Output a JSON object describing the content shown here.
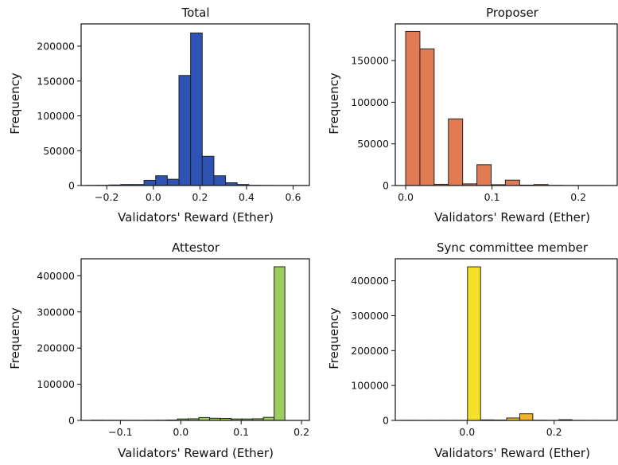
{
  "chart_data": [
    {
      "type": "bar",
      "title": "Total",
      "xlabel": "Validators' Reward (Ether)",
      "ylabel": "Frequency",
      "color": "#2f52b5",
      "xlim": [
        -0.31,
        0.67
      ],
      "ylim": [
        0,
        232000
      ],
      "xticks": [
        -0.2,
        0.0,
        0.2,
        0.4,
        0.6
      ],
      "xtick_labels": [
        "−0.2",
        "0.0",
        "0.2",
        "0.4",
        "0.6"
      ],
      "yticks": [
        0,
        50000,
        100000,
        150000,
        200000
      ],
      "ytick_labels": [
        "0",
        "50000",
        "100000",
        "150000",
        "200000"
      ],
      "bin_edges": [
        -0.29,
        -0.24,
        -0.19,
        -0.14,
        -0.09,
        -0.04,
        0.01,
        0.06,
        0.11,
        0.16,
        0.21,
        0.26,
        0.31,
        0.36,
        0.41,
        0.46,
        0.51,
        0.56,
        0.61,
        0.66
      ],
      "values": [
        200,
        300,
        800,
        1500,
        1500,
        7500,
        14000,
        9000,
        158000,
        219000,
        42000,
        14000,
        4000,
        1500,
        300,
        200,
        100,
        100,
        100
      ]
    },
    {
      "type": "bar",
      "title": "Proposer",
      "xlabel": "Validators' Reward (Ether)",
      "ylabel": "Frequency",
      "color": "#e07b54",
      "xlim": [
        -0.012,
        0.245
      ],
      "ylim": [
        0,
        194000
      ],
      "xticks": [
        0.0,
        0.1,
        0.2
      ],
      "xtick_labels": [
        "0.0",
        "0.1",
        "0.2"
      ],
      "yticks": [
        0,
        50000,
        100000,
        150000
      ],
      "ytick_labels": [
        "0",
        "50000",
        "100000",
        "150000"
      ],
      "bin_edges": [
        0.0,
        0.0165,
        0.033,
        0.0495,
        0.066,
        0.0825,
        0.099,
        0.1155,
        0.132,
        0.1485,
        0.165,
        0.1815,
        0.198,
        0.2145,
        0.231,
        0.2475
      ],
      "values": [
        185000,
        164000,
        1500,
        80000,
        2000,
        25000,
        1000,
        6500,
        500,
        1200,
        200,
        100,
        100,
        100,
        50
      ]
    },
    {
      "type": "bar",
      "title": "Attestor",
      "xlabel": "Validators' Reward (Ether)",
      "ylabel": "Frequency",
      "color": "#9dcc5f",
      "xlim": [
        -0.165,
        0.213
      ],
      "ylim": [
        0,
        447000
      ],
      "xticks": [
        -0.1,
        0.0,
        0.1,
        0.2
      ],
      "xtick_labels": [
        "−0.1",
        "0.0",
        "0.1",
        "0.2"
      ],
      "yticks": [
        0,
        100000,
        200000,
        300000,
        400000
      ],
      "ytick_labels": [
        "0",
        "100000",
        "200000",
        "300000",
        "400000"
      ],
      "bin_edges": [
        -0.148,
        -0.1302,
        -0.1124,
        -0.0946,
        -0.0768,
        -0.059,
        -0.0412,
        -0.0234,
        -0.0056,
        0.0122,
        0.03,
        0.0478,
        0.0656,
        0.0834,
        0.1012,
        0.119,
        0.1368,
        0.1546,
        0.1724,
        0.1902
      ],
      "values": [
        500,
        300,
        300,
        200,
        200,
        300,
        500,
        1000,
        4000,
        4500,
        8000,
        6000,
        5500,
        4000,
        4000,
        4500,
        8500,
        425000,
        0
      ]
    },
    {
      "type": "bar",
      "title": "Sync committee member",
      "xlabel": "Validators' Reward (Ether)",
      "ylabel": "Frequency",
      "color": "#f5e12a",
      "xlim": [
        -0.165,
        0.345
      ],
      "ylim": [
        0,
        463000
      ],
      "xticks": [
        0.0,
        0.2
      ],
      "xtick_labels": [
        "0.0",
        "0.2"
      ],
      "yticks": [
        0,
        100000,
        200000,
        300000,
        400000
      ],
      "ytick_labels": [
        "0",
        "100000",
        "200000",
        "300000",
        "400000"
      ],
      "bin_edges": [
        -0.149,
        -0.119,
        -0.089,
        -0.059,
        -0.029,
        0.001,
        0.031,
        0.061,
        0.091,
        0.121,
        0.151,
        0.181,
        0.211,
        0.241,
        0.271,
        0.301,
        0.331
      ],
      "values": [
        200,
        100,
        100,
        100,
        100,
        440000,
        1500,
        1000,
        7000,
        19000,
        500,
        200,
        2000,
        200,
        100,
        100
      ],
      "bar_colors": [
        "#f5e12a",
        "#f5e12a",
        "#f5e12a",
        "#f5e12a",
        "#f5e12a",
        "#f5e12a",
        "#f5e12a",
        "#f5e12a",
        "#f2c52a",
        "#f2b32a",
        "#f2b32a",
        "#f2b32a",
        "#f2b32a",
        "#f2b32a",
        "#f2b32a",
        "#f2b32a"
      ]
    }
  ]
}
